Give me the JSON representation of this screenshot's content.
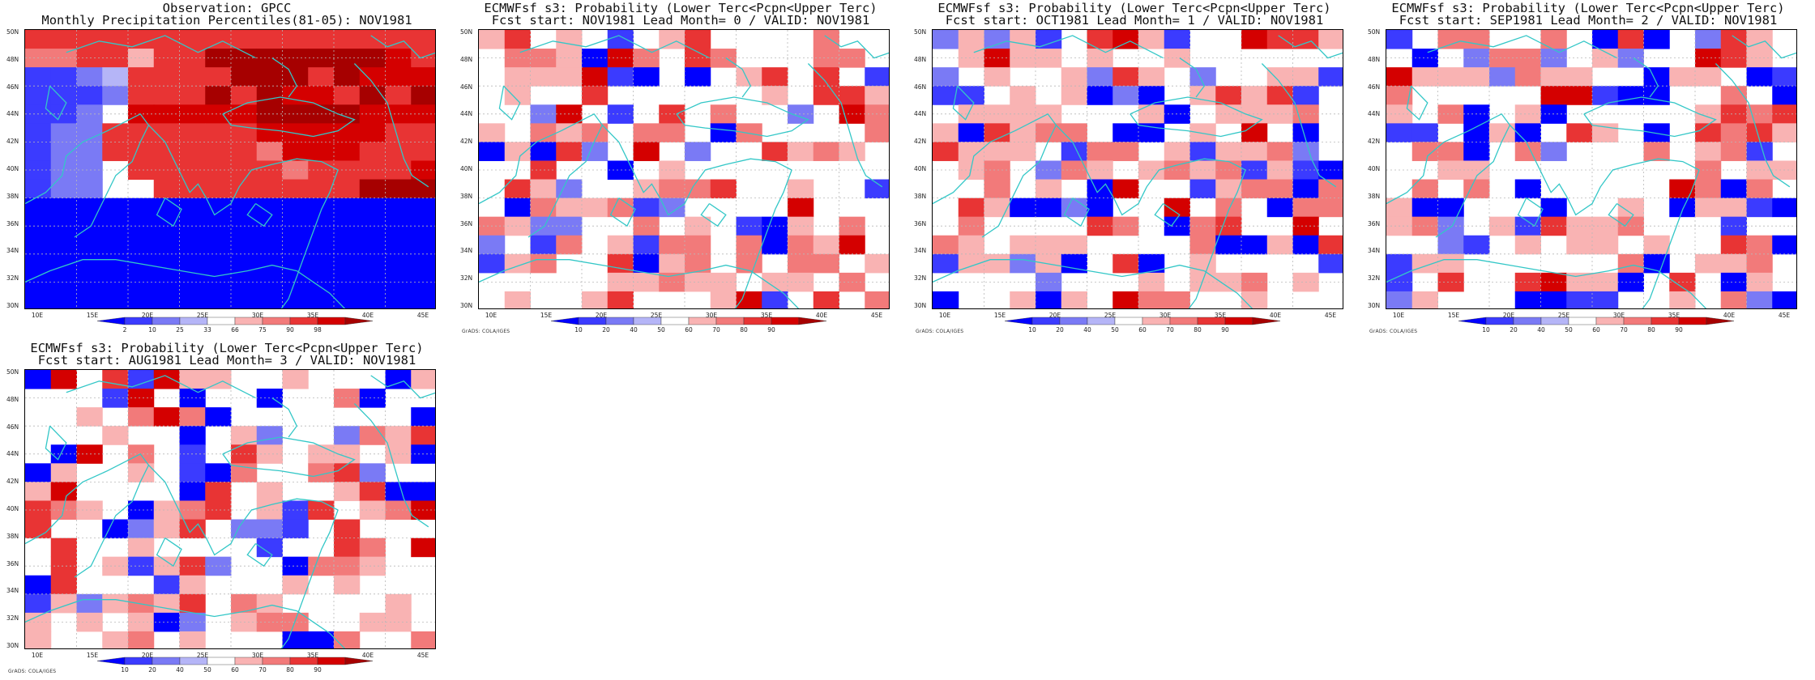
{
  "colors": {
    "coast": "#33c7c7",
    "grid": "#b8b8b8",
    "scale": [
      "#0000ff",
      "#3b3bff",
      "#7a7af5",
      "#b5b5f7",
      "#ffffff",
      "#f9b3b3",
      "#f27a7a",
      "#e83434",
      "#d40000",
      "#a60000"
    ]
  },
  "axes": {
    "y_labels": [
      "50N",
      "48N",
      "46N",
      "44N",
      "42N",
      "40N",
      "38N",
      "36N",
      "34N",
      "32N",
      "30N"
    ],
    "x_labels": [
      "10E",
      "15E",
      "20E",
      "25E",
      "30E",
      "35E",
      "40E",
      "45E"
    ]
  },
  "credit": "GrADS: COLA/IGES",
  "panels": [
    {
      "title_line1": "Observation: GPCC",
      "title_line2": "Monthly Precipitation Percentiles(81-05): NOV1981",
      "colorbar_labels": [
        "2",
        "10",
        "25",
        "33",
        "66",
        "75",
        "90",
        "98"
      ],
      "grid": [
        "7777777777777777",
        "6677577999999987",
        "1123777799979888",
        "1112777979887979",
        "1124888889999888",
        "1227777778888877",
        "1227777776888777",
        "1224777777677778",
        "1224477777777999",
        "0000000000000000",
        "0000000000000000",
        "0000000000000000",
        "0000000000000000",
        "0000000000000000",
        "0000000000000000"
      ]
    },
    {
      "title_line1": "ECMWFsf s3: Probability (Lower Terc<Pcpn<Upper Terc)",
      "title_line2": "Fcst start: NOV1981  Lead Month= 0 / VALID: NOV1981",
      "colorbar_labels": [
        "10",
        "20",
        "40",
        "50",
        "60",
        "70",
        "80",
        "90"
      ],
      "grid": []
    },
    {
      "title_line1": "ECMWFsf s3: Probability (Lower Terc<Pcpn<Upper Terc)",
      "title_line2": "Fcst start: OCT1981  Lead Month= 1 / VALID: NOV1981",
      "colorbar_labels": [
        "10",
        "20",
        "40",
        "50",
        "60",
        "70",
        "80",
        "90"
      ],
      "grid": []
    },
    {
      "title_line1": "ECMWFsf s3: Probability (Lower Terc<Pcpn<Upper Terc)",
      "title_line2": "Fcst start: SEP1981  Lead Month= 2 / VALID: NOV1981",
      "colorbar_labels": [
        "10",
        "20",
        "40",
        "50",
        "60",
        "70",
        "80",
        "90"
      ],
      "grid": []
    },
    {
      "title_line1": "ECMWFsf s3: Probability (Lower Terc<Pcpn<Upper Terc)",
      "title_line2": "Fcst start: AUG1981  Lead Month= 3 / VALID: NOV1981",
      "colorbar_labels": [
        "10",
        "20",
        "40",
        "50",
        "60",
        "70",
        "80",
        "90"
      ],
      "grid": []
    }
  ]
}
